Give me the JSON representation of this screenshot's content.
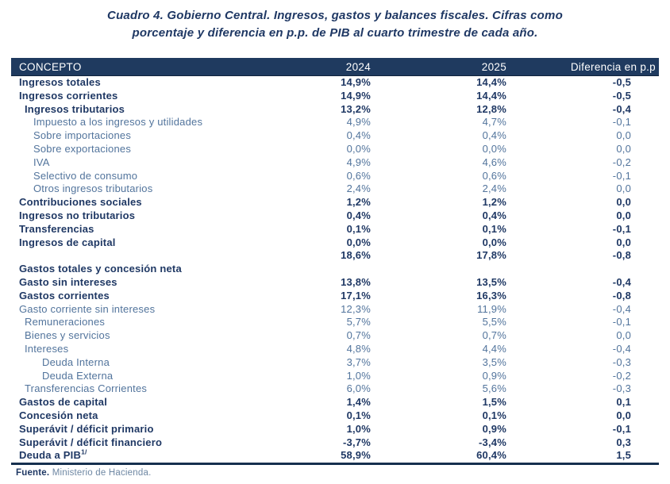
{
  "title": {
    "line1": "Cuadro 4. Gobierno Central. Ingresos, gastos y balances fiscales. Cifras como",
    "line2": "porcentaje y diferencia en p.p. de PIB al cuarto trimestre de cada año."
  },
  "table": {
    "headers": [
      "CONCEPTO",
      "2024",
      "2025",
      "Diferencia en p.p"
    ],
    "rows": [
      {
        "label": "Ingresos totales",
        "y2024": "14,9%",
        "y2025": "14,4%",
        "diff": "-0,5",
        "weight": "bold",
        "indent": 0
      },
      {
        "label": "Ingresos corrientes",
        "y2024": "14,9%",
        "y2025": "14,4%",
        "diff": "-0,5",
        "weight": "bold",
        "indent": 0
      },
      {
        "label": "Ingresos tributarios",
        "y2024": "13,2%",
        "y2025": "12,8%",
        "diff": "-0,4",
        "weight": "bold",
        "indent": 1
      },
      {
        "label": "Impuesto a los ingresos y utilidades",
        "y2024": "4,9%",
        "y2025": "4,7%",
        "diff": "-0,1",
        "weight": "light",
        "indent": 2
      },
      {
        "label": "Sobre importaciones",
        "y2024": "0,4%",
        "y2025": "0,4%",
        "diff": "0,0",
        "weight": "light",
        "indent": 2
      },
      {
        "label": "Sobre exportaciones",
        "y2024": "0,0%",
        "y2025": "0,0%",
        "diff": "0,0",
        "weight": "light",
        "indent": 2
      },
      {
        "label": "IVA",
        "y2024": "4,9%",
        "y2025": "4,6%",
        "diff": "-0,2",
        "weight": "light",
        "indent": 2
      },
      {
        "label": "Selectivo de consumo",
        "y2024": "0,6%",
        "y2025": "0,6%",
        "diff": "-0,1",
        "weight": "light",
        "indent": 2
      },
      {
        "label": "Otros ingresos tributarios",
        "y2024": "2,4%",
        "y2025": "2,4%",
        "diff": "0,0",
        "weight": "light",
        "indent": 2
      },
      {
        "label": "Contribuciones sociales",
        "y2024": "1,2%",
        "y2025": "1,2%",
        "diff": "0,0",
        "weight": "bold",
        "indent": 0
      },
      {
        "label": "Ingresos no tributarios",
        "y2024": "0,4%",
        "y2025": "0,4%",
        "diff": "0,0",
        "weight": "bold",
        "indent": 0
      },
      {
        "label": "Transferencias",
        "y2024": "0,1%",
        "y2025": "0,1%",
        "diff": "-0,1",
        "weight": "bold",
        "indent": 0
      },
      {
        "label": "Ingresos de capital",
        "y2024": "0,0%",
        "y2025": "0,0%",
        "diff": "0,0",
        "weight": "bold",
        "indent": 0
      },
      {
        "label": "",
        "y2024": "18,6%",
        "y2025": "17,8%",
        "diff": "-0,8",
        "weight": "bold",
        "indent": 0
      },
      {
        "label": "Gastos totales y concesión neta",
        "y2024": "",
        "y2025": "",
        "diff": "",
        "weight": "bold",
        "indent": 0
      },
      {
        "label": "Gasto sin intereses",
        "y2024": "13,8%",
        "y2025": "13,5%",
        "diff": "-0,4",
        "weight": "bold",
        "indent": 0
      },
      {
        "label": "Gastos corrientes",
        "y2024": "17,1%",
        "y2025": "16,3%",
        "diff": "-0,8",
        "weight": "bold",
        "indent": 0
      },
      {
        "label": "Gasto corriente sin intereses",
        "y2024": "12,3%",
        "y2025": "11,9%",
        "diff": "-0,4",
        "weight": "light",
        "indent": 0
      },
      {
        "label": "Remuneraciones",
        "y2024": "5,7%",
        "y2025": "5,5%",
        "diff": "-0,1",
        "weight": "light",
        "indent": 1
      },
      {
        "label": "Bienes y servicios",
        "y2024": "0,7%",
        "y2025": "0,7%",
        "diff": "0,0",
        "weight": "light",
        "indent": 1
      },
      {
        "label": "Intereses",
        "y2024": "4,8%",
        "y2025": "4,4%",
        "diff": "-0,4",
        "weight": "light",
        "indent": 1
      },
      {
        "label": "Deuda Interna",
        "y2024": "3,7%",
        "y2025": "3,5%",
        "diff": "-0,3",
        "weight": "light",
        "indent": 3
      },
      {
        "label": "Deuda Externa",
        "y2024": "1,0%",
        "y2025": "0,9%",
        "diff": "-0,2",
        "weight": "light",
        "indent": 3
      },
      {
        "label": "Transferencias Corrientes",
        "y2024": "6,0%",
        "y2025": "5,6%",
        "diff": "-0,3",
        "weight": "light",
        "indent": 1
      },
      {
        "label": "Gastos de capital",
        "y2024": "1,4%",
        "y2025": "1,5%",
        "diff": "0,1",
        "weight": "bold",
        "indent": 0
      },
      {
        "label": "Concesión neta",
        "y2024": "0,1%",
        "y2025": "0,1%",
        "diff": "0,0",
        "weight": "bold",
        "indent": 0
      },
      {
        "label": "Superávit / déficit primario",
        "y2024": "1,0%",
        "y2025": "0,9%",
        "diff": "-0,1",
        "weight": "bold",
        "indent": 0
      },
      {
        "label": "Superávit / déficit financiero",
        "y2024": "-3,7%",
        "y2025": "-3,4%",
        "diff": "0,3",
        "weight": "bold",
        "indent": 0
      },
      {
        "label": "Deuda a PIB",
        "sup": "1/",
        "y2024": "58,9%",
        "y2025": "60,4%",
        "diff": "1,5",
        "weight": "bold",
        "indent": 0
      }
    ]
  },
  "footer": {
    "source_label": "Fuente.",
    "source_text": " Ministerio de Hacienda."
  },
  "colors": {
    "header_bg": "#1f3a5f",
    "header_text": "#ffffff",
    "bold_text": "#1f3864",
    "light_text": "#52749c",
    "source_light_text": "#6e87a3"
  }
}
